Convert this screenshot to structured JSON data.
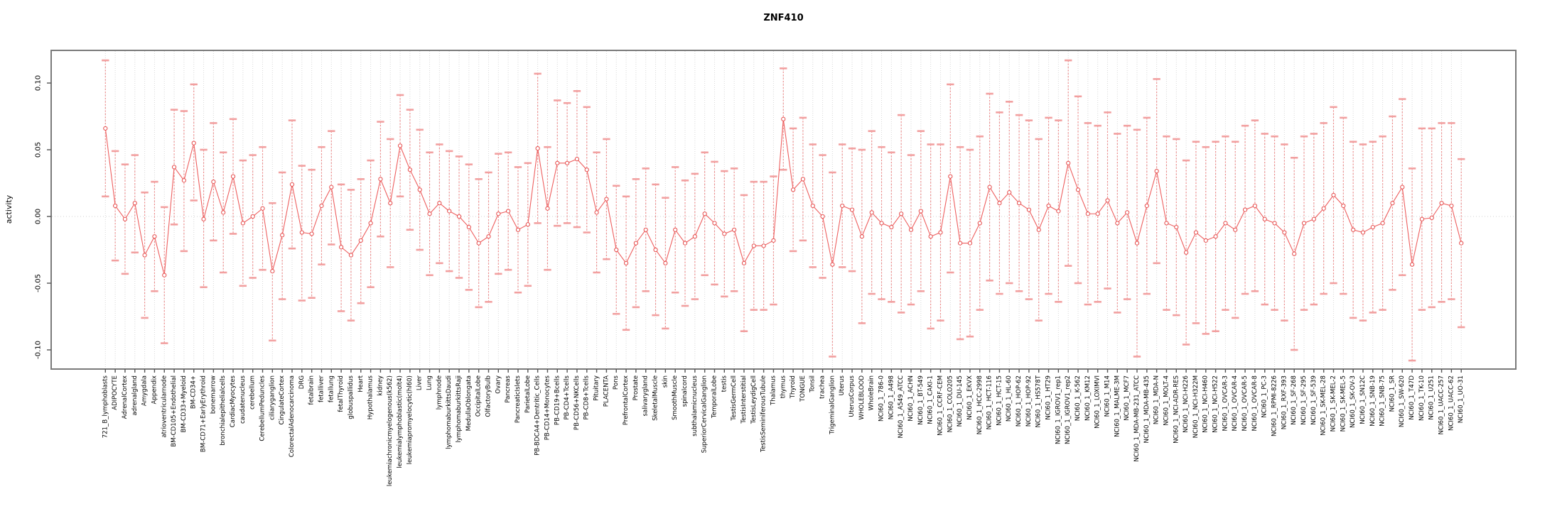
{
  "chart_data": {
    "type": "line",
    "title": "ZNF410",
    "xlabel": "",
    "ylabel": "activity",
    "ylim": [
      -0.115,
      0.125
    ],
    "yticks": [
      0.1,
      0.05,
      0.0,
      -0.05,
      -0.1
    ],
    "ytick_labels": [
      "0.10",
      "0.05",
      "0.00",
      "-0.05",
      "-0.10"
    ],
    "legend": "none",
    "grid": "vertical dotted line per category; dotted horizontal line at 0",
    "point_style": "open circle with vertical dashed error bar and capped whiskers",
    "colors": {
      "series_line": "#ee5f5f",
      "point_stroke": "#e64c4c",
      "error_stem": "#ee8888",
      "error_cap": "#f2a0a0",
      "gridline": "#d8d8d8",
      "zero_line": "#d0d0d0",
      "axis_box": "#7a7a7a",
      "tick": "#555555",
      "text": "#000000"
    },
    "categories": [
      "721_B_lymphoblasts",
      "ADIPOCYTE",
      "AdrenalCortex",
      "adrenalgland",
      "Amygdala",
      "Appendix",
      "atrioventricularnode",
      "BM-CD105+Endothelial",
      "BM-CD33+Myeloid",
      "BM-CD34+",
      "BM-CD71+EarlyErythroid",
      "bonemarrow",
      "bronchialepithelialcells",
      "CardiacMyocytes",
      "caudatenucleus",
      "cerebellum",
      "CerebellumPeduncles",
      "ciliaryganglion",
      "CingulateCortex",
      "ColorectalAdenocarcinoma",
      "DRG",
      "fetalbrain",
      "fetalliver",
      "fetallung",
      "fetalThyroid",
      "globuspallidus",
      "Heart",
      "Hypothalamus",
      "kidney",
      "leukemiachronicmyelogenous(k562)",
      "leukemialymphoblastic(molt4)",
      "leukemiapromyelocytic(hl60)",
      "Liver",
      "Lung",
      "lymphnode",
      "lymphomaburkittsDaudi",
      "lymphomaburkittsRaji",
      "MedullaOblongata",
      "OccipitalLobe",
      "OlfactoryBulb",
      "Ovary",
      "Pancreas",
      "PancreaticIslets",
      "ParietalLobe",
      "PB-BDCA4+Dentritic_Cells",
      "PB-CD14+Monocytes",
      "PB-CD19+Bcells",
      "PB-CD4+Tcells",
      "PB-CD56+NKCells",
      "PB-CD8+Tcells",
      "Pituitary",
      "PLACENTA",
      "Pons",
      "PrefrontalCortex",
      "Prostate",
      "salivarygland",
      "SkeletalMuscle",
      "skin",
      "SmoothMuscle",
      "spinalcord",
      "subthalamicnucleus",
      "SuperiorCervicalGanglion",
      "TemporalLobe",
      "testis",
      "TestisGermCell",
      "TestisInterstitial",
      "TestisLeydigCell",
      "TestisSeminiferousTubule",
      "Thalamus",
      "thymus",
      "Thyroid",
      "TONGUE",
      "Tonsil",
      "trachea",
      "TrigeminalGanglion",
      "Uterus",
      "UterusCorpus",
      "WHOLEBLOOD",
      "WholeBrain",
      "NCI60_1_786-0",
      "NCI60_1_A498",
      "NCI60_1_A549_ATCC",
      "NCI60_1_ACHN",
      "NCI60_1_BT-549",
      "NCI60_1_CAKI-1",
      "NCI60_1_CCRF-CEM",
      "NCI60_1_COLO205",
      "NCI60_1_DU-145",
      "NCI60_1_EKVX",
      "NCI60_1_HCC-2998",
      "NCI60_1_HCT-116",
      "NCI60_1_HCT-15",
      "NCI60_1_HL-60",
      "NCI60_1_HOP-62",
      "NCI60_1_HOP-92",
      "NCI60_1_HS578T",
      "NCI60_1_HT29",
      "NCI60_1_IGROV1_rep1",
      "NCI60_1_IGROV1_rep2",
      "NCI60_1_K-562",
      "NCI60_1_KM12",
      "NCI60_1_LOXIMVI",
      "NCI60_1_M14",
      "NCI60_1_MALME-3M",
      "NCI60_1_MCF7",
      "NCI60_1_MDA-MB-231_ATCC",
      "NCI60_1_MDA-MB-435",
      "NCI60_1_MDA-N",
      "NCI60_1_MOLT-4",
      "NCI60_1_NCI-ADR-RES",
      "NCI60_1_NCI-H226",
      "NCI60_1_NCI-H322M",
      "NCI60_1_NCI-H460",
      "NCI60_1_NCI-H522",
      "NCI60_1_OVCAR-3",
      "NCI60_1_OVCAR-4",
      "NCI60_1_OVCAR-5",
      "NCI60_1_OVCAR-8",
      "NCI60_1_PC-3",
      "NCI60_1_RPMI-8226",
      "NCI60_1_RXF-393",
      "NCI60_1_SF-268",
      "NCI60_1_SF-295",
      "NCI60_1_SF-539",
      "NCI60_1_SK-MEL-28",
      "NCI60_1_SK-MEL-2",
      "NCI60_1_SK-MEL-5",
      "NCI60_1_SK-OV-3",
      "NCI60_1_SN12C",
      "NCI60_1_SNB-19",
      "NCI60_1_SNB-75",
      "NCI60_1_SR",
      "NCI60_1_SW-620",
      "NCI60_1_T47D",
      "NCI60_1_TK-10",
      "NCI60_1_U251",
      "NCI60_1_UACC-257",
      "NCI60_1_UACC-62",
      "NCI60_1_UO-31"
    ],
    "means": [
      0.066,
      0.008,
      -0.002,
      0.01,
      -0.029,
      -0.015,
      -0.044,
      0.037,
      0.027,
      0.055,
      -0.002,
      0.026,
      0.003,
      0.03,
      -0.005,
      0.0,
      0.006,
      -0.041,
      -0.014,
      0.024,
      -0.012,
      -0.013,
      0.008,
      0.022,
      -0.023,
      -0.029,
      -0.018,
      -0.005,
      0.028,
      0.01,
      0.053,
      0.035,
      0.02,
      0.002,
      0.01,
      0.004,
      0.0,
      -0.008,
      -0.02,
      -0.015,
      0.002,
      0.004,
      -0.01,
      -0.006,
      0.051,
      0.006,
      0.04,
      0.04,
      0.043,
      0.035,
      0.003,
      0.013,
      -0.025,
      -0.035,
      -0.02,
      -0.01,
      -0.025,
      -0.035,
      -0.01,
      -0.02,
      -0.015,
      0.002,
      -0.005,
      -0.013,
      -0.01,
      -0.035,
      -0.022,
      -0.022,
      -0.018,
      0.073,
      0.02,
      0.028,
      0.008,
      0.0,
      -0.036,
      0.008,
      0.005,
      -0.015,
      0.003,
      -0.005,
      -0.008,
      0.002,
      -0.01,
      0.004,
      -0.015,
      -0.012,
      0.03,
      -0.02,
      -0.02,
      -0.005,
      0.022,
      0.01,
      0.018,
      0.01,
      0.005,
      -0.01,
      0.008,
      0.004,
      0.04,
      0.02,
      0.002,
      0.002,
      0.012,
      -0.005,
      0.003,
      -0.02,
      0.008,
      0.034,
      -0.005,
      -0.008,
      -0.027,
      -0.012,
      -0.018,
      -0.015,
      -0.005,
      -0.01,
      0.005,
      0.008,
      -0.002,
      -0.005,
      -0.012,
      -0.028,
      -0.005,
      -0.002,
      0.006,
      0.016,
      0.008,
      -0.01,
      -0.012,
      -0.008,
      -0.005,
      0.01,
      0.022,
      -0.036,
      -0.002,
      -0.001,
      0.01,
      0.008,
      -0.02
    ],
    "lower": [
      0.015,
      -0.033,
      -0.043,
      -0.027,
      -0.076,
      -0.056,
      -0.095,
      -0.006,
      -0.026,
      0.012,
      -0.053,
      -0.018,
      -0.042,
      -0.013,
      -0.052,
      -0.046,
      -0.04,
      -0.093,
      -0.062,
      -0.024,
      -0.063,
      -0.061,
      -0.036,
      -0.021,
      -0.071,
      -0.078,
      -0.065,
      -0.053,
      -0.015,
      -0.038,
      0.015,
      -0.01,
      -0.025,
      -0.044,
      -0.035,
      -0.041,
      -0.046,
      -0.055,
      -0.068,
      -0.064,
      -0.043,
      -0.04,
      -0.057,
      -0.052,
      -0.005,
      -0.04,
      -0.007,
      -0.005,
      -0.008,
      -0.012,
      -0.042,
      -0.032,
      -0.073,
      -0.085,
      -0.068,
      -0.056,
      -0.074,
      -0.084,
      -0.057,
      -0.067,
      -0.062,
      -0.044,
      -0.051,
      -0.06,
      -0.056,
      -0.086,
      -0.07,
      -0.07,
      -0.066,
      0.035,
      -0.026,
      -0.018,
      -0.038,
      -0.046,
      -0.105,
      -0.038,
      -0.041,
      -0.08,
      -0.058,
      -0.062,
      -0.064,
      -0.072,
      -0.066,
      -0.056,
      -0.084,
      -0.078,
      -0.042,
      -0.092,
      -0.09,
      -0.07,
      -0.048,
      -0.058,
      -0.05,
      -0.056,
      -0.062,
      -0.078,
      -0.058,
      -0.064,
      -0.037,
      -0.05,
      -0.066,
      -0.064,
      -0.054,
      -0.072,
      -0.062,
      -0.105,
      -0.058,
      -0.035,
      -0.07,
      -0.074,
      -0.096,
      -0.08,
      -0.088,
      -0.086,
      -0.07,
      -0.076,
      -0.058,
      -0.056,
      -0.066,
      -0.07,
      -0.078,
      -0.1,
      -0.07,
      -0.066,
      -0.058,
      -0.05,
      -0.058,
      -0.076,
      -0.078,
      -0.072,
      -0.07,
      -0.055,
      -0.044,
      -0.108,
      -0.07,
      -0.068,
      -0.064,
      -0.062,
      -0.083
    ],
    "upper": [
      0.117,
      0.049,
      0.039,
      0.046,
      0.018,
      0.026,
      0.007,
      0.08,
      0.079,
      0.099,
      0.05,
      0.07,
      0.048,
      0.073,
      0.042,
      0.046,
      0.052,
      0.01,
      0.033,
      0.072,
      0.038,
      0.035,
      0.052,
      0.064,
      0.024,
      0.02,
      0.028,
      0.042,
      0.071,
      0.058,
      0.091,
      0.08,
      0.065,
      0.048,
      0.054,
      0.049,
      0.045,
      0.039,
      0.028,
      0.033,
      0.047,
      0.048,
      0.037,
      0.04,
      0.107,
      0.052,
      0.087,
      0.085,
      0.094,
      0.082,
      0.048,
      0.058,
      0.023,
      0.015,
      0.028,
      0.036,
      0.024,
      0.014,
      0.037,
      0.027,
      0.032,
      0.048,
      0.041,
      0.034,
      0.036,
      0.016,
      0.026,
      0.026,
      0.03,
      0.111,
      0.066,
      0.074,
      0.054,
      0.046,
      0.033,
      0.054,
      0.051,
      0.05,
      0.064,
      0.052,
      0.048,
      0.076,
      0.046,
      0.064,
      0.054,
      0.054,
      0.099,
      0.052,
      0.05,
      0.06,
      0.092,
      0.078,
      0.086,
      0.076,
      0.072,
      0.058,
      0.074,
      0.072,
      0.117,
      0.09,
      0.07,
      0.068,
      0.078,
      0.062,
      0.068,
      0.065,
      0.074,
      0.103,
      0.06,
      0.058,
      0.042,
      0.056,
      0.052,
      0.056,
      0.06,
      0.056,
      0.068,
      0.072,
      0.062,
      0.06,
      0.054,
      0.044,
      0.06,
      0.062,
      0.07,
      0.082,
      0.074,
      0.056,
      0.054,
      0.056,
      0.06,
      0.075,
      0.088,
      0.036,
      0.066,
      0.066,
      0.07,
      0.07,
      0.043
    ]
  }
}
